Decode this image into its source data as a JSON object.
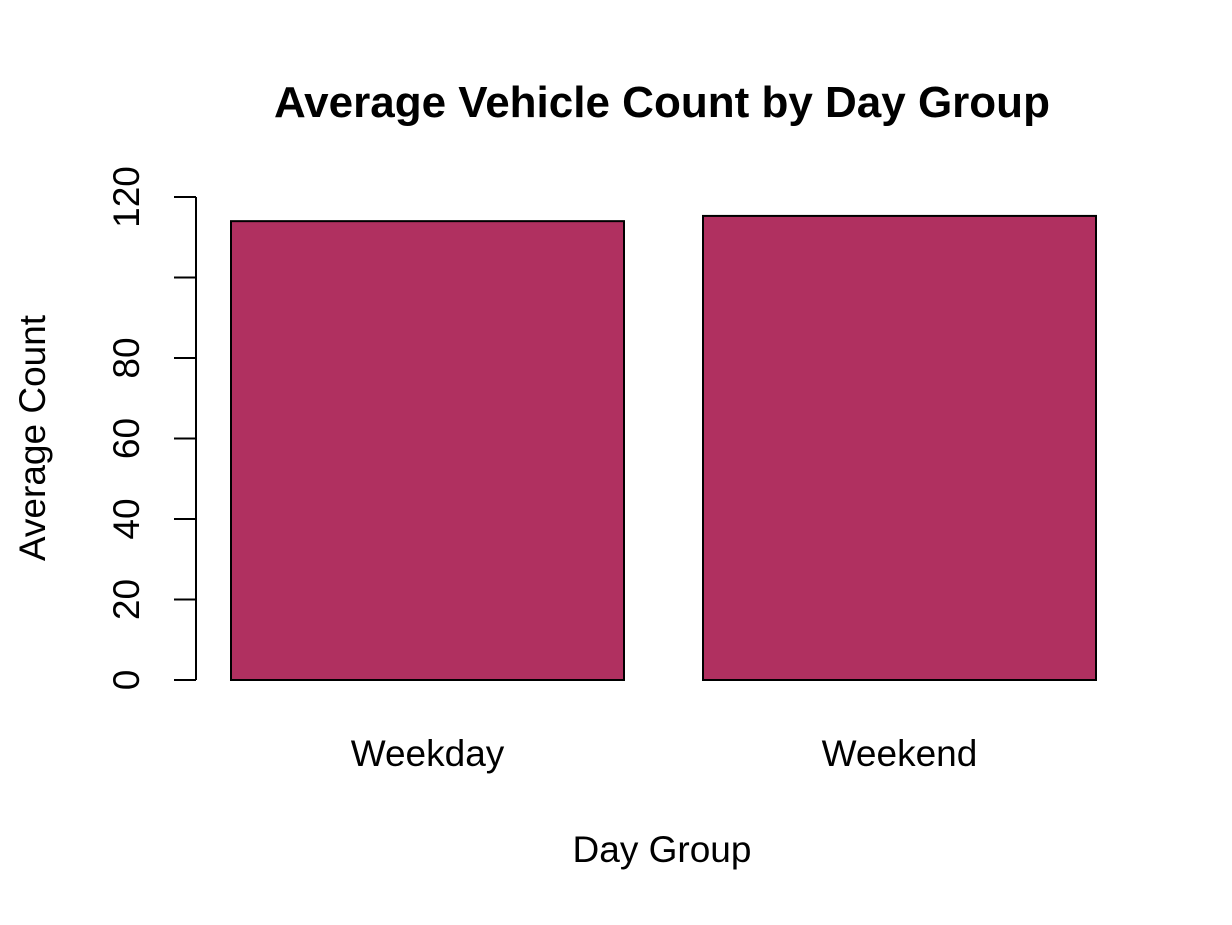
{
  "chart_data": {
    "type": "bar",
    "title": "Average Vehicle Count by Day Group",
    "xlabel": "Day Group",
    "ylabel": "Average Count",
    "categories": [
      "Weekday",
      "Weekend"
    ],
    "values": [
      114,
      115.3
    ],
    "ylim": [
      0,
      120
    ],
    "yticks": [
      0,
      20,
      40,
      60,
      80,
      100,
      120
    ],
    "ytick_labels": [
      "0",
      "20",
      "40",
      "60",
      "80",
      "",
      "120"
    ],
    "bar_color": "#B03060",
    "grid": false,
    "legend": "none"
  }
}
